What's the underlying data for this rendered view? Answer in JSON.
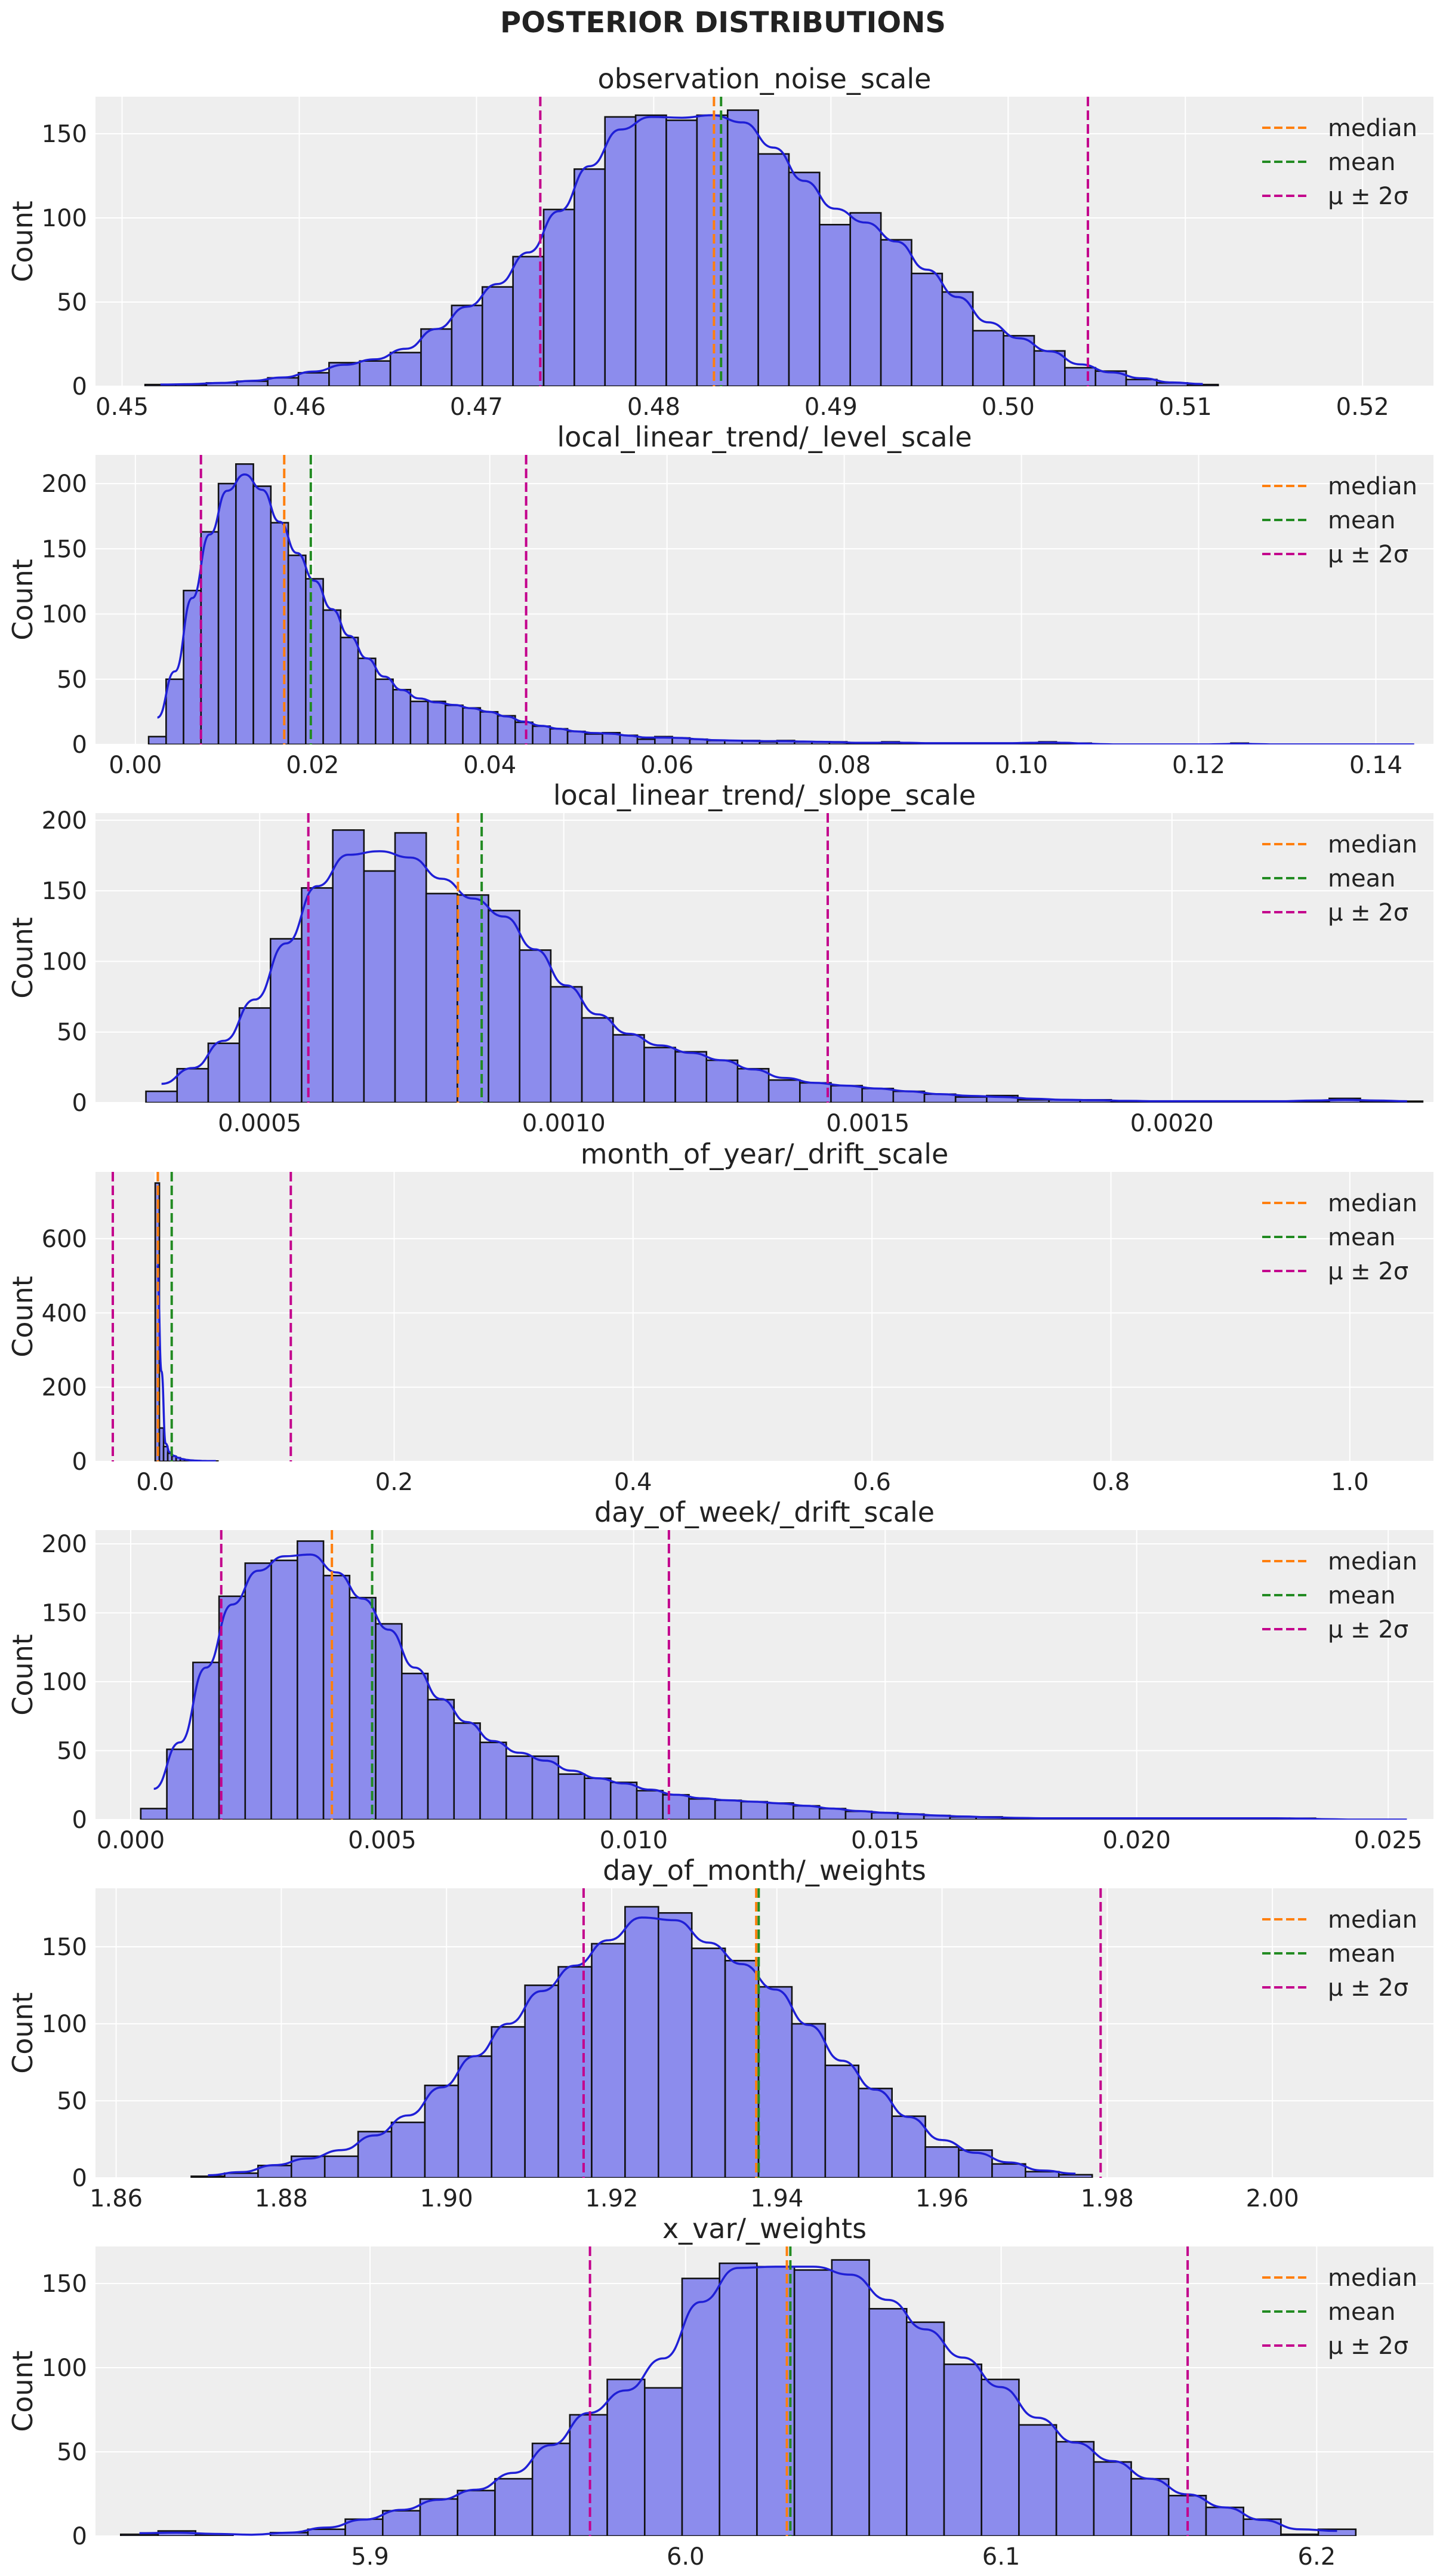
{
  "figure": {
    "title": "POSTERIOR DISTRIBUTIONS",
    "colors": {
      "panel_bg": "#eeeeee",
      "grid": "#ffffff",
      "bar_fill": "#8c8ced",
      "bar_edge": "#111111",
      "kde": "#1f1fd6",
      "median": "#ff7f0e",
      "mean": "#228b22",
      "bounds": "#c3008c"
    }
  },
  "legend": {
    "placement": "top-right",
    "entries": [
      {
        "label": "median",
        "color": "#ff7f0e"
      },
      {
        "label": "mean",
        "color": "#228b22"
      },
      {
        "label": "μ ± 2σ",
        "color": "#c3008c"
      }
    ]
  },
  "chart_data": [
    {
      "type": "histogram",
      "title": "observation_noise_scale",
      "ylabel": "Count",
      "xlim": [
        0.4485,
        0.524
      ],
      "ylim": [
        0,
        172
      ],
      "xticks": [
        0.45,
        0.46,
        0.47,
        0.48,
        0.49,
        0.5,
        0.51,
        0.52
      ],
      "xticklabels": [
        "0.45",
        "0.46",
        "0.47",
        "0.48",
        "0.49",
        "0.50",
        "0.51",
        "0.52"
      ],
      "yticks": [
        0,
        50,
        100,
        150
      ],
      "yticklabels": [
        "0",
        "50",
        "100",
        "150"
      ],
      "bin_start": 0.4513,
      "bin_width": 0.00173,
      "counts": [
        1,
        1,
        2,
        3,
        5,
        8,
        14,
        15,
        20,
        34,
        48,
        59,
        77,
        105,
        129,
        160,
        161,
        158,
        161,
        164,
        138,
        127,
        96,
        103,
        87,
        67,
        56,
        33,
        30,
        21,
        11,
        9,
        4,
        2,
        1
      ],
      "median": 0.4834,
      "mean": 0.4838,
      "lower": 0.4736,
      "upper": 0.5045
    },
    {
      "type": "histogram",
      "title": "local_linear_trend/_level_scale",
      "ylabel": "Count",
      "xlim": [
        -0.0045,
        0.1465
      ],
      "ylim": [
        0,
        222
      ],
      "xticks": [
        0.0,
        0.02,
        0.04,
        0.06,
        0.08,
        0.1,
        0.12,
        0.14
      ],
      "xticklabels": [
        "0.00",
        "0.02",
        "0.04",
        "0.06",
        "0.08",
        "0.10",
        "0.12",
        "0.14"
      ],
      "yticks": [
        0,
        50,
        100,
        150,
        200
      ],
      "yticklabels": [
        "0",
        "50",
        "100",
        "150",
        "200"
      ],
      "bin_start": 0.0015,
      "bin_width": 0.00197,
      "counts": [
        6,
        50,
        118,
        163,
        200,
        215,
        198,
        170,
        145,
        127,
        103,
        82,
        66,
        50,
        42,
        33,
        33,
        30,
        28,
        25,
        22,
        17,
        14,
        12,
        10,
        8,
        9,
        7,
        4,
        6,
        5,
        4,
        3,
        3,
        3,
        2,
        3,
        2,
        2,
        2,
        1,
        1,
        2,
        1,
        1,
        1,
        1,
        1,
        1,
        1,
        1,
        2,
        1,
        1,
        0,
        0,
        0,
        0,
        0,
        0,
        0,
        0,
        1,
        0,
        0,
        0,
        0,
        0,
        0,
        0,
        0,
        0,
        0
      ],
      "median": 0.0168,
      "mean": 0.0198,
      "lower": 0.0074,
      "upper": 0.0441
    },
    {
      "type": "histogram",
      "title": "local_linear_trend/_slope_scale",
      "ylabel": "Count",
      "xlim": [
        0.00023,
        0.00243
      ],
      "ylim": [
        0,
        205
      ],
      "xticks": [
        0.0005,
        0.001,
        0.0015,
        0.002
      ],
      "xticklabels": [
        "0.0005",
        "0.0010",
        "0.0015",
        "0.0020"
      ],
      "yticks": [
        0,
        50,
        100,
        150,
        200
      ],
      "yticklabels": [
        "0",
        "50",
        "100",
        "150",
        "200"
      ],
      "bin_start": 0.000313,
      "bin_width": 5.12e-05,
      "counts": [
        8,
        24,
        42,
        67,
        116,
        152,
        193,
        164,
        191,
        148,
        147,
        136,
        108,
        82,
        60,
        48,
        39,
        36,
        30,
        24,
        16,
        14,
        12,
        10,
        8,
        6,
        4,
        5,
        2,
        2,
        2,
        1,
        1,
        1,
        1,
        1,
        1,
        1,
        3,
        1,
        1
      ],
      "median": 0.000826,
      "mean": 0.000865,
      "lower": 0.00058,
      "upper": 0.001434
    },
    {
      "type": "histogram",
      "title": "month_of_year/_drift_scale",
      "ylabel": "Count",
      "xlim": [
        -0.05,
        1.07
      ],
      "ylim": [
        0,
        780
      ],
      "xticks": [
        0.0,
        0.2,
        0.4,
        0.6,
        0.8,
        1.0
      ],
      "xticklabels": [
        "0.0",
        "0.2",
        "0.4",
        "0.6",
        "0.8",
        "1.0"
      ],
      "yticks": [
        0,
        200,
        400,
        600
      ],
      "yticklabels": [
        "0",
        "200",
        "400",
        "600"
      ],
      "bin_start": 0.0,
      "bin_width": 0.0035,
      "counts": [
        750,
        90,
        40,
        22,
        14,
        10,
        6,
        4,
        3,
        2,
        2,
        1,
        1,
        1,
        1
      ],
      "median": 0.0022,
      "mean": 0.0138,
      "lower": -0.0355,
      "upper": 0.1135
    },
    {
      "type": "histogram",
      "title": "day_of_week/_drift_scale",
      "ylabel": "Count",
      "xlim": [
        -0.0007,
        0.0259
      ],
      "ylim": [
        0,
        210
      ],
      "xticks": [
        0.0,
        0.005,
        0.01,
        0.015,
        0.02,
        0.025
      ],
      "xticklabels": [
        "0.000",
        "0.005",
        "0.010",
        "0.015",
        "0.020",
        "0.025"
      ],
      "yticks": [
        0,
        50,
        100,
        150,
        200
      ],
      "yticklabels": [
        "0",
        "50",
        "100",
        "150",
        "200"
      ],
      "bin_start": 0.0002,
      "bin_width": 0.000519,
      "counts": [
        8,
        51,
        114,
        162,
        186,
        188,
        202,
        177,
        161,
        142,
        106,
        87,
        70,
        56,
        46,
        46,
        33,
        30,
        27,
        21,
        18,
        15,
        14,
        13,
        12,
        10,
        8,
        6,
        5,
        4,
        3,
        2,
        2,
        1,
        1,
        1,
        1,
        1,
        1,
        1,
        1,
        1,
        1,
        1,
        1,
        0,
        0,
        0,
        0
      ],
      "median": 0.004,
      "mean": 0.0048,
      "lower": 0.0018,
      "upper": 0.0107
    },
    {
      "type": "histogram",
      "title": "day_of_month/_weights",
      "ylabel": "Count",
      "xlim": [
        1.8575,
        2.0195
      ],
      "ylim": [
        0,
        188
      ],
      "xticks": [
        1.86,
        1.88,
        1.9,
        1.92,
        1.94,
        1.96,
        1.98,
        2.0
      ],
      "xticklabels": [
        "1.86",
        "1.88",
        "1.90",
        "1.92",
        "1.94",
        "1.96",
        "1.98",
        "2.00"
      ],
      "yticks": [
        0,
        50,
        100,
        150
      ],
      "yticklabels": [
        "0",
        "50",
        "100",
        "150"
      ],
      "bin_start": 1.8691,
      "bin_width": 0.00404,
      "counts": [
        1,
        3,
        8,
        14,
        14,
        30,
        36,
        60,
        79,
        98,
        125,
        137,
        152,
        176,
        172,
        149,
        141,
        124,
        100,
        73,
        58,
        40,
        20,
        18,
        9,
        4,
        2
      ],
      "median": 1.9375,
      "mean": 1.9378,
      "lower": 1.9166,
      "upper": 1.9792
    },
    {
      "type": "histogram",
      "title": "x_var/_weights",
      "ylabel": "Count",
      "xlim": [
        5.813,
        6.237
      ],
      "ylim": [
        0,
        172
      ],
      "xticks": [
        5.8,
        5.9,
        6.0,
        6.1,
        6.2
      ],
      "xticklabels": [
        "5.8",
        "5.9",
        "6.0",
        "6.1",
        "6.2"
      ],
      "yticks": [
        0,
        50,
        100,
        150
      ],
      "yticklabels": [
        "0",
        "50",
        "100",
        "150"
      ],
      "bin_start": 5.821,
      "bin_width": 0.01186,
      "counts": [
        1,
        3,
        1,
        0,
        2,
        4,
        10,
        15,
        22,
        27,
        34,
        55,
        72,
        93,
        88,
        153,
        162,
        160,
        158,
        164,
        135,
        127,
        102,
        93,
        66,
        56,
        44,
        34,
        24,
        17,
        10,
        1,
        4
      ],
      "median": 6.0321,
      "mean": 6.0332,
      "lower": 5.9697,
      "upper": 6.1591
    }
  ]
}
